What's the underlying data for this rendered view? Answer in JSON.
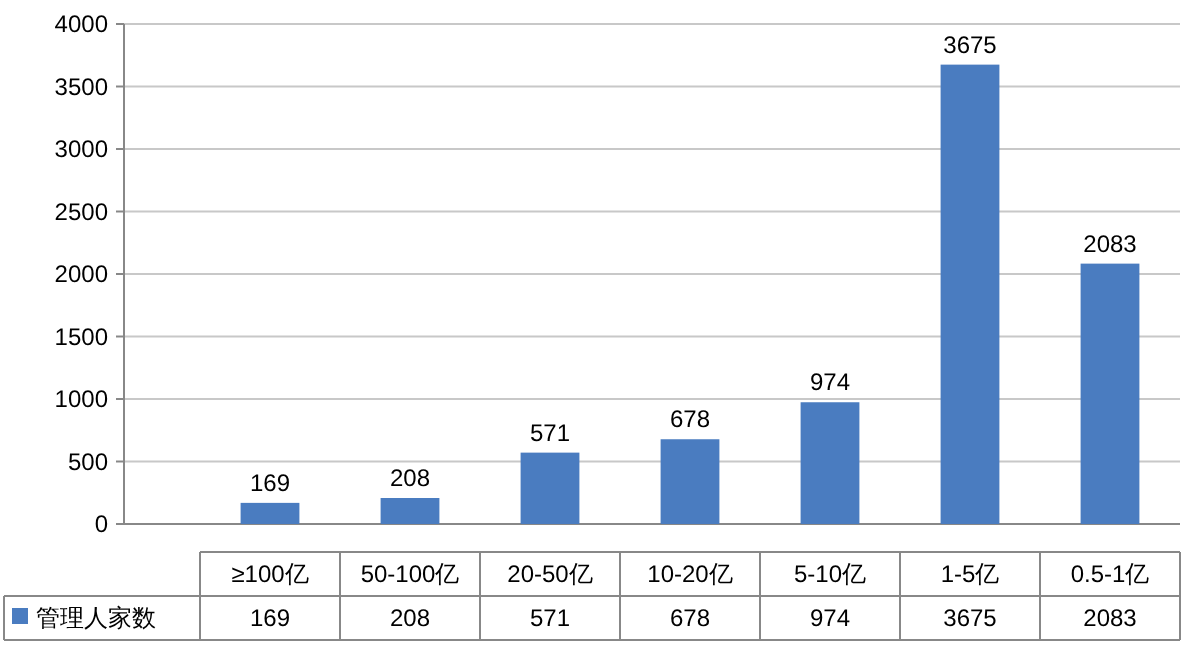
{
  "chart_data": {
    "type": "bar",
    "categories": [
      "≥100亿",
      "50-100亿",
      "20-50亿",
      "10-20亿",
      "5-10亿",
      "1-5亿",
      "0.5-1亿"
    ],
    "series": [
      {
        "name": "管理人家数",
        "color": "#4a7cc0",
        "values": [
          169,
          208,
          571,
          678,
          974,
          3675,
          2083
        ]
      }
    ],
    "annotations": [
      "169",
      "208",
      "571",
      "678",
      "974",
      "3675",
      "2083"
    ],
    "ylim": [
      0,
      4000
    ],
    "yticks": [
      0,
      500,
      1000,
      1500,
      2000,
      2500,
      3000,
      3500,
      4000
    ],
    "grid": "y",
    "data_labels": true,
    "legend": "bottom"
  }
}
